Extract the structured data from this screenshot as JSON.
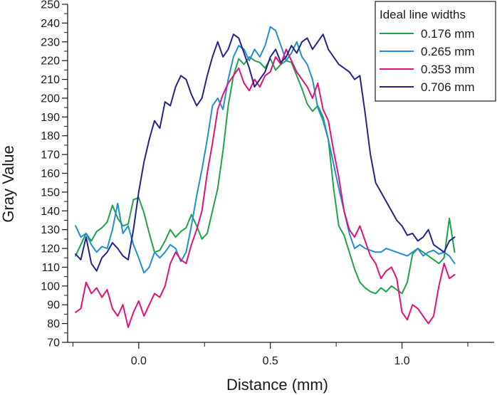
{
  "chart_data": {
    "type": "line",
    "title": "",
    "xlabel": "Distance (mm)",
    "ylabel": "Gray Value",
    "xlim": [
      -0.27,
      1.35
    ],
    "ylim": [
      70,
      250
    ],
    "x_ticks": [
      0.0,
      0.5,
      1.0
    ],
    "x_tick_labels": [
      "0.0",
      "0.5",
      "1.0"
    ],
    "y_ticks": [
      70,
      80,
      90,
      100,
      110,
      120,
      130,
      140,
      150,
      160,
      170,
      180,
      190,
      200,
      210,
      220,
      230,
      240,
      250
    ],
    "y_tick_labels": [
      "70",
      "80",
      "90",
      "100",
      "110",
      "120",
      "130",
      "140",
      "150",
      "160",
      "170",
      "180",
      "190",
      "200",
      "210",
      "220",
      "230",
      "240",
      "250"
    ],
    "grid": false,
    "legend": {
      "title": "Ideal line widths",
      "position": "top-right"
    },
    "series": [
      {
        "name": "0.176 mm",
        "color": "#1fa24a",
        "x": [
          -0.24,
          -0.22,
          -0.2,
          -0.18,
          -0.16,
          -0.14,
          -0.12,
          -0.1,
          -0.08,
          -0.06,
          -0.04,
          -0.02,
          0.0,
          0.02,
          0.04,
          0.06,
          0.08,
          0.1,
          0.12,
          0.14,
          0.16,
          0.18,
          0.2,
          0.22,
          0.24,
          0.26,
          0.28,
          0.3,
          0.32,
          0.34,
          0.36,
          0.38,
          0.4,
          0.42,
          0.44,
          0.46,
          0.48,
          0.5,
          0.52,
          0.54,
          0.56,
          0.58,
          0.6,
          0.62,
          0.64,
          0.66,
          0.68,
          0.7,
          0.72,
          0.74,
          0.76,
          0.78,
          0.8,
          0.82,
          0.84,
          0.86,
          0.88,
          0.9,
          0.92,
          0.94,
          0.96,
          0.98,
          1.0,
          1.02,
          1.04,
          1.06,
          1.08,
          1.1,
          1.12,
          1.14,
          1.16,
          1.18,
          1.2
        ],
        "values": [
          116,
          122,
          128,
          124,
          129,
          131,
          134,
          143,
          136,
          132,
          133,
          146,
          147,
          139,
          128,
          118,
          119,
          124,
          130,
          126,
          129,
          131,
          138,
          132,
          125,
          128,
          140,
          152,
          172,
          196,
          212,
          221,
          218,
          222,
          220,
          219,
          216,
          221,
          215,
          218,
          220,
          219,
          212,
          205,
          197,
          193,
          196,
          190,
          178,
          152,
          132,
          127,
          118,
          109,
          102,
          99,
          97,
          96,
          99,
          97,
          100,
          98,
          96,
          102,
          117,
          120,
          118,
          116,
          114,
          112,
          115,
          136,
          118
        ]
      },
      {
        "name": "0.265 mm",
        "color": "#1e8fd0",
        "x": [
          -0.24,
          -0.22,
          -0.2,
          -0.18,
          -0.16,
          -0.14,
          -0.12,
          -0.1,
          -0.08,
          -0.06,
          -0.04,
          -0.02,
          0.0,
          0.02,
          0.04,
          0.06,
          0.08,
          0.1,
          0.12,
          0.14,
          0.16,
          0.18,
          0.2,
          0.22,
          0.24,
          0.26,
          0.28,
          0.3,
          0.32,
          0.34,
          0.36,
          0.38,
          0.4,
          0.42,
          0.44,
          0.46,
          0.48,
          0.5,
          0.52,
          0.54,
          0.56,
          0.58,
          0.6,
          0.62,
          0.64,
          0.66,
          0.68,
          0.7,
          0.72,
          0.74,
          0.76,
          0.78,
          0.8,
          0.82,
          0.84,
          0.86,
          0.88,
          0.9,
          0.92,
          0.94,
          0.96,
          0.98,
          1.0,
          1.02,
          1.04,
          1.06,
          1.08,
          1.1,
          1.12,
          1.14,
          1.16,
          1.18,
          1.2
        ],
        "values": [
          132,
          126,
          128,
          122,
          118,
          121,
          120,
          130,
          144,
          128,
          132,
          122,
          115,
          107,
          110,
          118,
          115,
          118,
          122,
          120,
          113,
          118,
          132,
          148,
          162,
          178,
          196,
          200,
          194,
          210,
          222,
          228,
          226,
          220,
          226,
          222,
          228,
          238,
          236,
          228,
          220,
          224,
          230,
          222,
          218,
          210,
          195,
          188,
          178,
          165,
          152,
          140,
          128,
          120,
          122,
          120,
          119,
          118,
          118,
          120,
          119,
          118,
          117,
          116,
          118,
          120,
          116,
          118,
          119,
          117,
          118,
          116,
          112
        ]
      },
      {
        "name": "0.353 mm",
        "color": "#e0127c",
        "x": [
          -0.24,
          -0.22,
          -0.2,
          -0.18,
          -0.16,
          -0.14,
          -0.12,
          -0.1,
          -0.08,
          -0.06,
          -0.04,
          -0.02,
          0.0,
          0.02,
          0.04,
          0.06,
          0.08,
          0.1,
          0.12,
          0.14,
          0.16,
          0.18,
          0.2,
          0.22,
          0.24,
          0.26,
          0.28,
          0.3,
          0.32,
          0.34,
          0.36,
          0.38,
          0.4,
          0.42,
          0.44,
          0.46,
          0.48,
          0.5,
          0.52,
          0.54,
          0.56,
          0.58,
          0.6,
          0.62,
          0.64,
          0.66,
          0.68,
          0.7,
          0.72,
          0.74,
          0.76,
          0.78,
          0.8,
          0.82,
          0.84,
          0.86,
          0.88,
          0.9,
          0.92,
          0.94,
          0.96,
          0.98,
          1.0,
          1.02,
          1.04,
          1.06,
          1.08,
          1.1,
          1.12,
          1.14,
          1.16,
          1.18,
          1.2
        ],
        "values": [
          86,
          88,
          102,
          96,
          99,
          94,
          98,
          88,
          84,
          90,
          78,
          86,
          92,
          84,
          90,
          96,
          94,
          100,
          112,
          118,
          114,
          112,
          122,
          130,
          140,
          160,
          176,
          194,
          202,
          208,
          212,
          216,
          208,
          204,
          210,
          206,
          212,
          214,
          222,
          218,
          226,
          220,
          214,
          210,
          206,
          200,
          208,
          194,
          188,
          172,
          158,
          140,
          130,
          126,
          132,
          124,
          116,
          112,
          104,
          108,
          110,
          104,
          86,
          82,
          90,
          88,
          84,
          80,
          84,
          100,
          112,
          104,
          106
        ]
      },
      {
        "name": "0.706 mm",
        "color": "#23248a",
        "x": [
          -0.24,
          -0.22,
          -0.2,
          -0.18,
          -0.16,
          -0.14,
          -0.12,
          -0.1,
          -0.08,
          -0.06,
          -0.04,
          -0.02,
          0.0,
          0.02,
          0.04,
          0.06,
          0.08,
          0.1,
          0.12,
          0.14,
          0.16,
          0.18,
          0.2,
          0.22,
          0.24,
          0.26,
          0.28,
          0.3,
          0.32,
          0.34,
          0.36,
          0.38,
          0.4,
          0.42,
          0.44,
          0.46,
          0.48,
          0.5,
          0.52,
          0.54,
          0.56,
          0.58,
          0.6,
          0.62,
          0.64,
          0.66,
          0.68,
          0.7,
          0.72,
          0.74,
          0.76,
          0.78,
          0.8,
          0.82,
          0.84,
          0.86,
          0.88,
          0.9,
          0.92,
          0.94,
          0.96,
          0.98,
          1.0,
          1.02,
          1.04,
          1.06,
          1.08,
          1.1,
          1.12,
          1.14,
          1.16,
          1.18,
          1.2
        ],
        "values": [
          117,
          114,
          126,
          112,
          108,
          115,
          118,
          123,
          120,
          116,
          114,
          130,
          150,
          166,
          178,
          188,
          184,
          198,
          196,
          206,
          212,
          210,
          202,
          196,
          200,
          212,
          222,
          230,
          222,
          226,
          234,
          232,
          224,
          216,
          206,
          210,
          214,
          222,
          226,
          219,
          222,
          228,
          224,
          230,
          232,
          226,
          230,
          234,
          226,
          222,
          218,
          216,
          214,
          210,
          212,
          192,
          170,
          155,
          150,
          145,
          140,
          135,
          132,
          127,
          128,
          124,
          126,
          130,
          122,
          120,
          118,
          124,
          126
        ]
      }
    ]
  }
}
